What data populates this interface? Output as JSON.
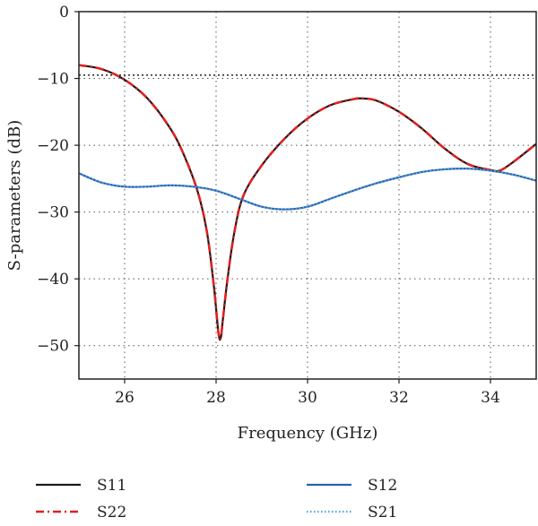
{
  "chart_data": {
    "type": "line",
    "title": "",
    "xlabel": "Frequency (GHz)",
    "ylabel": "S-parameters (dB)",
    "xlim": [
      25,
      35
    ],
    "ylim": [
      -55,
      0
    ],
    "xticks": [
      26,
      28,
      30,
      32,
      34
    ],
    "yticks": [
      0,
      -10,
      -20,
      -30,
      -40,
      -50
    ],
    "xtick_labels": [
      "26",
      "28",
      "30",
      "32",
      "34"
    ],
    "ytick_labels": [
      "0",
      "−10",
      "−20",
      "−30",
      "−40",
      "−50"
    ],
    "grid": true,
    "reference_line": {
      "y": -9.5,
      "style": "dotted",
      "color": "#333333"
    },
    "legend_position": "bottom",
    "series": [
      {
        "name": "S11",
        "color": "#1a1a1a",
        "style": "solid",
        "x": [
          25,
          25.5,
          26,
          26.5,
          27,
          27.3,
          27.6,
          27.8,
          27.95,
          28.05,
          28.1,
          28.15,
          28.25,
          28.4,
          28.6,
          29,
          29.5,
          30,
          30.5,
          31,
          31.2,
          31.5,
          32,
          32.5,
          33,
          33.5,
          34,
          34.2,
          34.5,
          35
        ],
        "y": [
          -8,
          -8.6,
          -10.2,
          -13,
          -17.5,
          -21.5,
          -27,
          -33,
          -41,
          -48,
          -48.9,
          -46,
          -40,
          -33,
          -27.5,
          -23,
          -19,
          -16,
          -14,
          -13.1,
          -13,
          -13.3,
          -15,
          -17.5,
          -20.5,
          -22.8,
          -23.7,
          -23.8,
          -22.5,
          -19.8
        ]
      },
      {
        "name": "S22",
        "color": "#e02020",
        "style": "dashdot",
        "x": [
          25,
          25.5,
          26,
          26.5,
          27,
          27.3,
          27.6,
          27.8,
          27.95,
          28.05,
          28.1,
          28.15,
          28.25,
          28.4,
          28.6,
          29,
          29.5,
          30,
          30.5,
          31,
          31.2,
          31.5,
          32,
          32.5,
          33,
          33.5,
          34,
          34.2,
          34.5,
          35
        ],
        "y": [
          -8,
          -8.6,
          -10.2,
          -13,
          -17.5,
          -21.5,
          -27,
          -33,
          -41,
          -48,
          -48.9,
          -46,
          -40,
          -33,
          -27.5,
          -23,
          -19,
          -16,
          -14,
          -13.1,
          -13,
          -13.3,
          -15,
          -17.5,
          -20.5,
          -22.8,
          -23.7,
          -23.8,
          -22.5,
          -19.8
        ]
      },
      {
        "name": "S12",
        "color": "#2f5fb0",
        "style": "solid",
        "x": [
          25,
          25.5,
          26,
          26.5,
          27,
          27.5,
          28,
          28.5,
          29,
          29.5,
          30,
          30.5,
          31,
          31.5,
          32,
          32.5,
          33,
          33.5,
          34,
          34.5,
          35
        ],
        "y": [
          -24.2,
          -25.6,
          -26.2,
          -26.2,
          -26,
          -26.2,
          -26.8,
          -28,
          -29.2,
          -29.6,
          -29.2,
          -28,
          -26.8,
          -25.7,
          -24.8,
          -24,
          -23.6,
          -23.5,
          -23.8,
          -24.4,
          -25.3
        ]
      },
      {
        "name": "S21",
        "color": "#4ea8d8",
        "style": "dotted",
        "x": [
          25,
          25.5,
          26,
          26.5,
          27,
          27.5,
          28,
          28.5,
          29,
          29.5,
          30,
          30.5,
          31,
          31.5,
          32,
          32.5,
          33,
          33.5,
          34,
          34.5,
          35
        ],
        "y": [
          -24.2,
          -25.6,
          -26.2,
          -26.2,
          -26,
          -26.2,
          -26.8,
          -28,
          -29.2,
          -29.6,
          -29.2,
          -28,
          -26.8,
          -25.7,
          -24.8,
          -24,
          -23.6,
          -23.5,
          -23.8,
          -24.4,
          -25.3
        ]
      }
    ]
  }
}
